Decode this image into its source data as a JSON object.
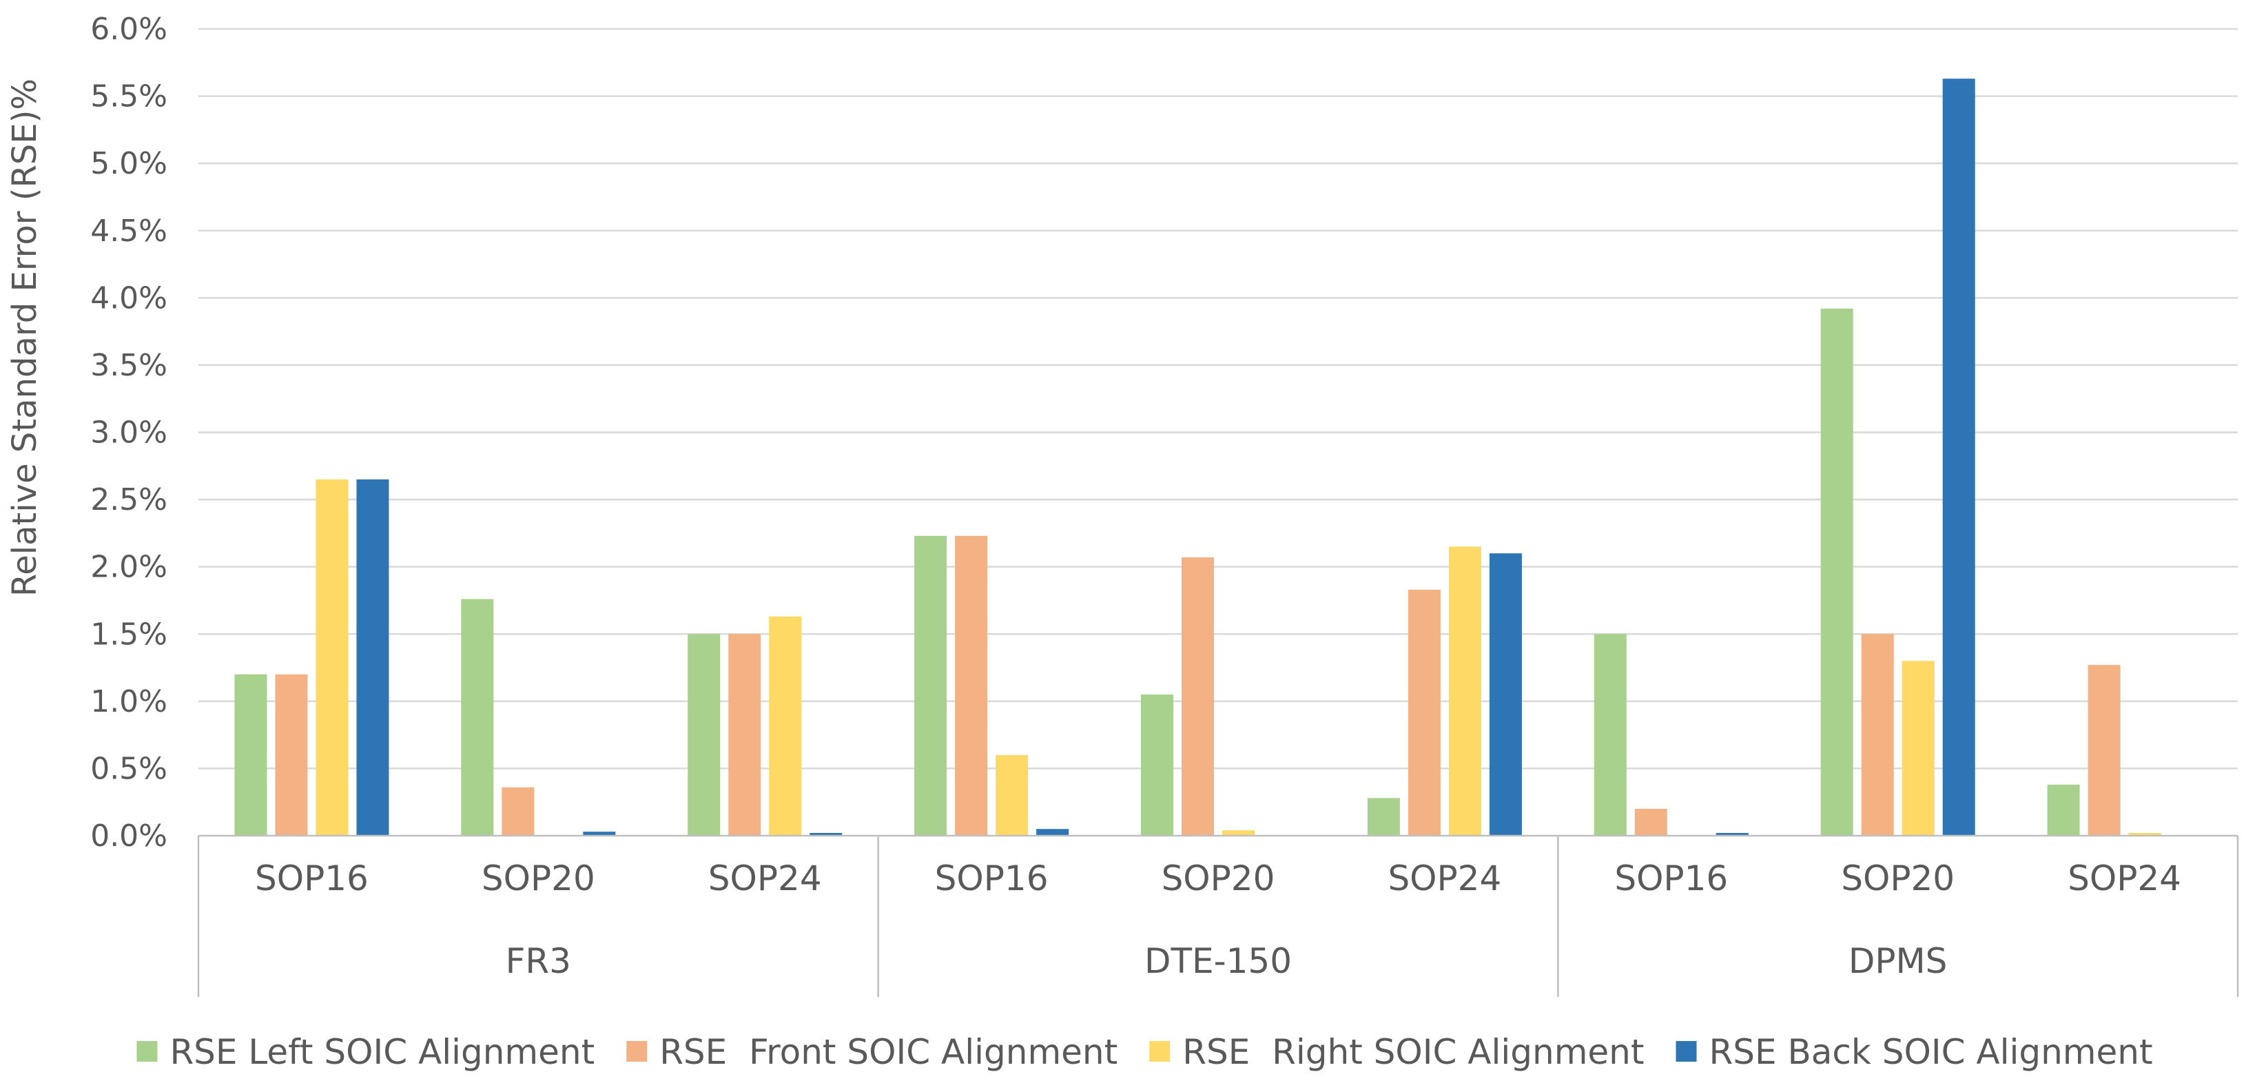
{
  "chart_data": {
    "type": "bar",
    "title": "",
    "ylabel": "Relative Standard Error (RSE)%",
    "xlabel": "",
    "ylim": [
      0,
      6.0
    ],
    "ytick_step": 0.5,
    "ytick_labels": [
      "0.0%",
      "0.5%",
      "1.0%",
      "1.5%",
      "2.0%",
      "2.5%",
      "3.0%",
      "3.5%",
      "4.0%",
      "4.5%",
      "5.0%",
      "5.5%",
      "6.0%"
    ],
    "groups": [
      {
        "name": "FR3",
        "categories": [
          "SOP16",
          "SOP20",
          "SOP24"
        ]
      },
      {
        "name": "DTE-150",
        "categories": [
          "SOP16",
          "SOP20",
          "SOP24"
        ]
      },
      {
        "name": "DPMS",
        "categories": [
          "SOP16",
          "SOP20",
          "SOP24"
        ]
      }
    ],
    "series": [
      {
        "name": "RSE Left SOIC Alignment",
        "color": "#a9d18e",
        "values": [
          1.2,
          1.76,
          1.5,
          2.23,
          1.05,
          0.28,
          1.5,
          3.92,
          0.38
        ]
      },
      {
        "name": "RSE  Front SOIC Alignment",
        "color": "#f4b183",
        "values": [
          1.2,
          0.36,
          1.5,
          2.23,
          2.07,
          1.83,
          0.2,
          1.5,
          1.27
        ]
      },
      {
        "name": "RSE  Right SOIC Alignment",
        "color": "#ffd966",
        "values": [
          2.65,
          0.0,
          1.63,
          0.6,
          0.04,
          2.15,
          0.0,
          1.3,
          0.02
        ]
      },
      {
        "name": "RSE Back SOIC Alignment",
        "color": "#2e75b6",
        "values": [
          2.65,
          0.03,
          0.02,
          0.05,
          0.0,
          2.1,
          0.02,
          5.63,
          0.0
        ]
      }
    ],
    "grid": true,
    "legend_position": "bottom"
  }
}
